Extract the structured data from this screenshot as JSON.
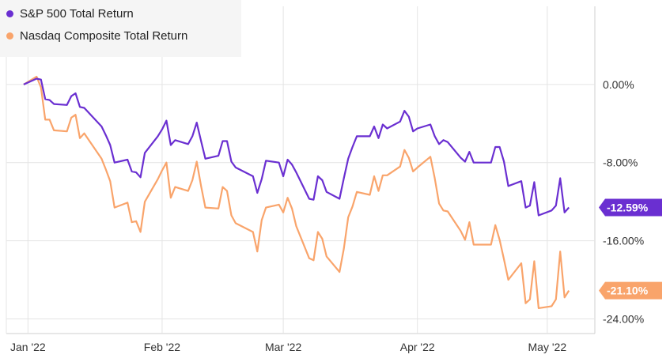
{
  "chart_data": {
    "type": "line",
    "title": "",
    "xlabel": "",
    "ylabel": "",
    "legend_position": "top-left",
    "grid": true,
    "ylim": [
      -25.5,
      8.0
    ],
    "xlim": [
      "2021-12-27",
      "2022-05-12"
    ],
    "x_ticks": [
      {
        "date": "2022-01-01",
        "label": "Jan '22"
      },
      {
        "date": "2022-02-01",
        "label": "Feb '22"
      },
      {
        "date": "2022-03-01",
        "label": "Mar '22"
      },
      {
        "date": "2022-04-01",
        "label": "Apr '22"
      },
      {
        "date": "2022-05-01",
        "label": "May '22"
      }
    ],
    "y_ticks": [
      {
        "value": 0,
        "label": "0.00%"
      },
      {
        "value": -8,
        "label": "-8.00%"
      },
      {
        "value": -16,
        "label": "-16.00%"
      },
      {
        "value": -24,
        "label": "-24.00%"
      }
    ],
    "x": [
      "2021-12-31",
      "2022-01-03",
      "2022-01-04",
      "2022-01-05",
      "2022-01-06",
      "2022-01-07",
      "2022-01-10",
      "2022-01-11",
      "2022-01-12",
      "2022-01-13",
      "2022-01-14",
      "2022-01-18",
      "2022-01-19",
      "2022-01-20",
      "2022-01-21",
      "2022-01-24",
      "2022-01-25",
      "2022-01-26",
      "2022-01-27",
      "2022-01-28",
      "2022-01-31",
      "2022-02-01",
      "2022-02-02",
      "2022-02-03",
      "2022-02-04",
      "2022-02-07",
      "2022-02-08",
      "2022-02-09",
      "2022-02-10",
      "2022-02-11",
      "2022-02-14",
      "2022-02-15",
      "2022-02-16",
      "2022-02-17",
      "2022-02-18",
      "2022-02-22",
      "2022-02-23",
      "2022-02-24",
      "2022-02-25",
      "2022-02-28",
      "2022-03-01",
      "2022-03-02",
      "2022-03-03",
      "2022-03-04",
      "2022-03-07",
      "2022-03-08",
      "2022-03-09",
      "2022-03-10",
      "2022-03-11",
      "2022-03-14",
      "2022-03-15",
      "2022-03-16",
      "2022-03-17",
      "2022-03-18",
      "2022-03-21",
      "2022-03-22",
      "2022-03-23",
      "2022-03-24",
      "2022-03-25",
      "2022-03-28",
      "2022-03-29",
      "2022-03-30",
      "2022-03-31",
      "2022-04-01",
      "2022-04-04",
      "2022-04-05",
      "2022-04-06",
      "2022-04-07",
      "2022-04-08",
      "2022-04-11",
      "2022-04-12",
      "2022-04-13",
      "2022-04-14",
      "2022-04-18",
      "2022-04-19",
      "2022-04-20",
      "2022-04-21",
      "2022-04-22",
      "2022-04-25",
      "2022-04-26",
      "2022-04-27",
      "2022-04-28",
      "2022-04-29",
      "2022-05-02",
      "2022-05-03",
      "2022-05-04",
      "2022-05-05",
      "2022-05-06"
    ],
    "series": [
      {
        "name": "S&P 500 Total Return",
        "color": "#6a2fd1",
        "end_label": "-12.59%",
        "values": [
          0.0,
          0.6,
          0.5,
          -1.5,
          -1.6,
          -2.0,
          -2.1,
          -1.2,
          -0.9,
          -2.3,
          -2.4,
          -4.3,
          -5.2,
          -6.2,
          -8.0,
          -7.7,
          -8.9,
          -9.0,
          -9.5,
          -7.0,
          -5.3,
          -4.6,
          -3.7,
          -6.2,
          -5.7,
          -6.1,
          -5.3,
          -3.9,
          -5.8,
          -7.6,
          -7.3,
          -5.8,
          -5.8,
          -7.9,
          -8.5,
          -9.4,
          -11.1,
          -9.7,
          -7.8,
          -8.0,
          -9.4,
          -7.7,
          -8.2,
          -9.0,
          -11.7,
          -11.8,
          -9.4,
          -9.8,
          -11.0,
          -11.7,
          -9.6,
          -7.6,
          -6.4,
          -5.3,
          -5.3,
          -4.3,
          -5.5,
          -4.1,
          -4.5,
          -3.8,
          -2.7,
          -3.3,
          -4.8,
          -4.5,
          -4.1,
          -5.3,
          -6.1,
          -5.7,
          -5.9,
          -7.5,
          -7.9,
          -6.9,
          -8.0,
          -8.0,
          -6.4,
          -6.4,
          -7.9,
          -10.4,
          -9.9,
          -12.6,
          -12.4,
          -10.0,
          -13.4,
          -12.9,
          -12.4,
          -9.6,
          -13.1,
          -12.59
        ]
      },
      {
        "name": "Nasdaq Composite Total Return",
        "color": "#f9a46b",
        "end_label": "-21.10%",
        "values": [
          0.0,
          0.8,
          -0.3,
          -3.6,
          -3.6,
          -4.7,
          -4.8,
          -3.4,
          -3.1,
          -5.5,
          -5.0,
          -7.6,
          -8.7,
          -9.9,
          -12.6,
          -12.1,
          -14.1,
          -14.0,
          -15.1,
          -12.0,
          -9.7,
          -8.8,
          -8.0,
          -11.6,
          -10.5,
          -10.9,
          -9.8,
          -7.9,
          -10.4,
          -12.6,
          -12.7,
          -10.5,
          -10.9,
          -13.4,
          -14.2,
          -15.1,
          -17.1,
          -13.9,
          -12.6,
          -12.3,
          -13.1,
          -11.6,
          -12.7,
          -14.5,
          -17.8,
          -18.0,
          -15.1,
          -15.8,
          -17.6,
          -19.2,
          -16.8,
          -13.6,
          -12.5,
          -11.0,
          -11.3,
          -9.4,
          -10.9,
          -9.3,
          -9.3,
          -8.4,
          -6.7,
          -7.5,
          -8.9,
          -8.5,
          -7.4,
          -9.6,
          -12.2,
          -12.9,
          -13.0,
          -15.0,
          -15.9,
          -14.1,
          -16.4,
          -16.4,
          -14.4,
          -15.9,
          -17.9,
          -20.0,
          -18.3,
          -22.4,
          -22.0,
          -18.1,
          -22.9,
          -22.7,
          -22.0,
          -17.1,
          -21.8,
          -21.1
        ]
      }
    ]
  }
}
